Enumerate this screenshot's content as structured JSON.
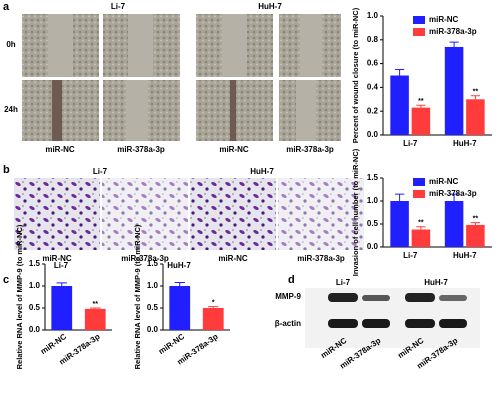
{
  "panels": {
    "a": {
      "label": "a",
      "groups": [
        "Li-7",
        "HuH-7"
      ],
      "rows": [
        "0h",
        "24h"
      ],
      "captions": [
        "miR-NC",
        "miR-378a-3p",
        "miR-NC",
        "miR-378a-3p"
      ]
    },
    "b": {
      "label": "b",
      "groups": [
        "Li-7",
        "HuH-7"
      ],
      "captions": [
        "miR-NC",
        "miR-378a-3p",
        "miR-NC",
        "miR-378a-3p"
      ]
    },
    "c": {
      "label": "c"
    },
    "d": {
      "label": "d",
      "groups": [
        "Li-7",
        "HuH-7"
      ],
      "rows": [
        "MMP-9",
        "β-actin"
      ],
      "lanes": [
        "miR-NC",
        "miR-378a-3p",
        "miR-NC",
        "miR-378a-3p"
      ]
    }
  },
  "chart_data": [
    {
      "type": "bar",
      "ylabel": "Percent of wound closure (to miR-NC)",
      "categories": [
        "Li-7",
        "HuH-7"
      ],
      "series": [
        {
          "name": "miR-NC",
          "color": "#1f1fff",
          "values": [
            0.5,
            0.74
          ],
          "errors": [
            0.05,
            0.04
          ]
        },
        {
          "name": "miR-378a-3p",
          "color": "#ff3b3b",
          "values": [
            0.23,
            0.3
          ],
          "errors": [
            0.02,
            0.03
          ],
          "annotations": [
            "**",
            "**"
          ]
        }
      ],
      "ylim": [
        0,
        1.0
      ],
      "yticks": [
        {
          "value": 0,
          "label": "0.0"
        },
        0.2,
        0.4,
        0.6,
        0.8,
        {
          "value": 1,
          "label": "1.0"
        }
      ],
      "legend": "upper-right"
    },
    {
      "type": "bar",
      "ylabel": "Invasion of cell number (to miR-NC)",
      "categories": [
        "Li-7",
        "HuH-7"
      ],
      "series": [
        {
          "name": "miR-NC",
          "color": "#1f1fff",
          "values": [
            1.0,
            1.0
          ],
          "errors": [
            0.15,
            0.15
          ]
        },
        {
          "name": "miR-378a-3p",
          "color": "#ff3b3b",
          "values": [
            0.38,
            0.48
          ],
          "errors": [
            0.06,
            0.05
          ],
          "annotations": [
            "**",
            "**"
          ]
        }
      ],
      "ylim": [
        0,
        1.5
      ],
      "yticks": [
        {
          "value": 0,
          "label": "0.0"
        },
        0.5,
        {
          "value": 1,
          "label": "1.0"
        },
        1.5
      ],
      "legend": "upper-right"
    },
    {
      "type": "bar",
      "title": "Li-7",
      "ylabel": "Relative RNA level of MMP-9 (to miR-NC)",
      "categories": [
        "miR-NC",
        "miR-378a-3p"
      ],
      "values": [
        1.0,
        0.48
      ],
      "errors": [
        0.07,
        0.02
      ],
      "colors": [
        "#1f1fff",
        "#ff3b3b"
      ],
      "annotations": [
        null,
        "**"
      ],
      "ylim": [
        0,
        1.5
      ],
      "yticks": [
        {
          "value": 0,
          "label": "0.0"
        },
        0.5,
        {
          "value": 1,
          "label": "1.0"
        },
        1.5
      ]
    },
    {
      "type": "bar",
      "title": "HuH-7",
      "ylabel": "Relative RNA level of MMP-9 (to miR-NC)",
      "categories": [
        "miR-NC",
        "miR-378a-3p"
      ],
      "values": [
        1.0,
        0.5
      ],
      "errors": [
        0.08,
        0.03
      ],
      "colors": [
        "#1f1fff",
        "#ff3b3b"
      ],
      "annotations": [
        null,
        "*"
      ],
      "ylim": [
        0,
        1.5
      ],
      "yticks": [
        {
          "value": 0,
          "label": "0.0"
        },
        0.5,
        {
          "value": 1,
          "label": "1.0"
        },
        1.5
      ]
    }
  ]
}
